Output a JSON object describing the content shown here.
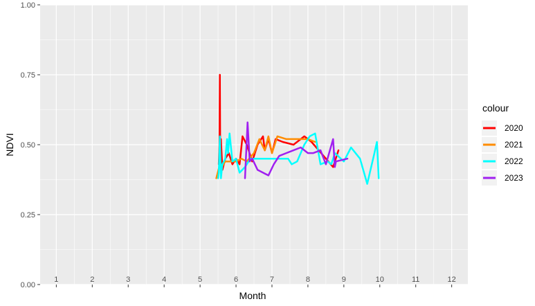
{
  "chart_data": {
    "type": "line",
    "xlabel": "Month",
    "ylabel": "NDVI",
    "xlim": [
      0.55,
      12.45
    ],
    "ylim": [
      0,
      1
    ],
    "y_ticks": [
      "0.00",
      "0.25",
      "0.50",
      "0.75",
      "1.00"
    ],
    "x_tick_labels": [
      "1",
      "2",
      "3",
      "4",
      "5",
      "6",
      "7",
      "8",
      "9",
      "10",
      "11",
      "12"
    ],
    "grid": true,
    "legend": {
      "title": "colour",
      "position": "right"
    },
    "series": [
      {
        "name": "2020",
        "color": "#ff0000",
        "x": [
          5.52,
          5.54,
          5.55,
          5.56,
          5.58,
          5.62,
          5.7,
          5.8,
          5.9,
          6.0,
          6.1,
          6.18,
          6.3,
          6.45,
          6.6,
          6.75,
          6.8,
          6.9,
          7.0,
          7.1,
          7.3,
          7.6,
          7.9,
          8.0,
          8.1,
          8.3,
          8.5,
          8.7,
          8.8,
          8.85
        ],
        "y": [
          0.43,
          0.5,
          0.75,
          0.47,
          0.52,
          0.41,
          0.45,
          0.47,
          0.43,
          0.45,
          0.43,
          0.53,
          0.5,
          0.44,
          0.5,
          0.53,
          0.48,
          0.52,
          0.47,
          0.52,
          0.51,
          0.5,
          0.53,
          0.52,
          0.51,
          0.48,
          0.45,
          0.42,
          0.46,
          0.48
        ]
      },
      {
        "name": "2021",
        "color": "#ff8c00",
        "x": [
          5.45,
          5.55,
          5.6,
          5.7,
          5.85,
          6.0,
          6.15,
          6.3,
          6.5,
          6.65,
          6.8,
          6.9,
          7.0,
          7.15,
          7.4,
          7.7,
          8.0,
          8.2
        ],
        "y": [
          0.38,
          0.43,
          0.42,
          0.44,
          0.44,
          0.44,
          0.45,
          0.44,
          0.47,
          0.52,
          0.48,
          0.53,
          0.47,
          0.53,
          0.52,
          0.52,
          0.52,
          0.51
        ]
      },
      {
        "name": "2022",
        "color": "#00ffff",
        "x": [
          5.5,
          5.52,
          5.55,
          5.58,
          5.62,
          5.7,
          5.75,
          5.78,
          5.82,
          5.9,
          6.0,
          6.1,
          6.25,
          6.4,
          6.6,
          6.8,
          7.0,
          7.25,
          7.45,
          7.55,
          7.7,
          7.9,
          8.05,
          8.2,
          8.35,
          8.55,
          8.65,
          8.75,
          9.0,
          9.2,
          9.45,
          9.65,
          9.85,
          9.92,
          9.97
        ],
        "y": [
          0.38,
          0.4,
          0.53,
          0.38,
          0.43,
          0.45,
          0.52,
          0.47,
          0.54,
          0.44,
          0.45,
          0.4,
          0.42,
          0.45,
          0.45,
          0.45,
          0.45,
          0.45,
          0.45,
          0.43,
          0.44,
          0.5,
          0.53,
          0.54,
          0.43,
          0.44,
          0.43,
          0.47,
          0.44,
          0.49,
          0.45,
          0.36,
          0.47,
          0.51,
          0.38
        ]
      },
      {
        "name": "2023",
        "color": "#a020f0",
        "x": [
          6.25,
          6.32,
          6.38,
          6.45,
          6.6,
          6.75,
          6.9,
          7.05,
          7.2,
          7.4,
          7.6,
          7.8,
          8.0,
          8.15,
          8.35,
          8.5,
          8.7,
          8.75,
          8.78,
          9.1
        ],
        "y": [
          0.38,
          0.58,
          0.44,
          0.45,
          0.41,
          0.4,
          0.39,
          0.43,
          0.46,
          0.47,
          0.48,
          0.49,
          0.47,
          0.47,
          0.48,
          0.43,
          0.52,
          0.42,
          0.44,
          0.45
        ]
      }
    ]
  }
}
